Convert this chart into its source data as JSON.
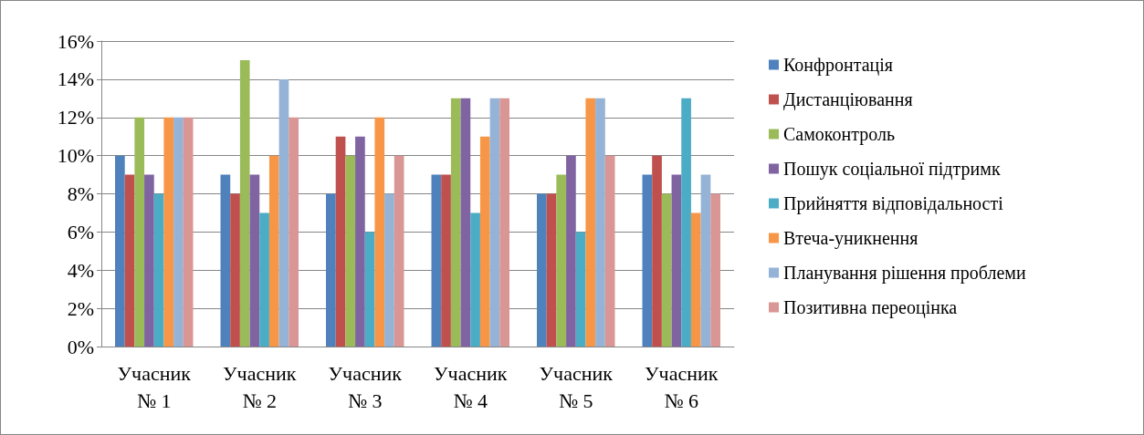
{
  "chart_data": {
    "type": "bar",
    "categories": [
      "Учасник № 1",
      "Учасник № 2",
      "Учасник № 3",
      "Учасник № 4",
      "Учасник № 5",
      "Учасник № 6"
    ],
    "series": [
      {
        "name": "Конфронтація",
        "color": "#4f81bd",
        "values": [
          10,
          9,
          8,
          9,
          8,
          9
        ]
      },
      {
        "name": "Дистанціювання",
        "color": "#c0504d",
        "values": [
          9,
          8,
          11,
          9,
          8,
          10
        ]
      },
      {
        "name": "Самоконтроль",
        "color": "#9bbb59",
        "values": [
          12,
          15,
          10,
          13,
          9,
          8
        ]
      },
      {
        "name": "Пошук соціальної підтримк",
        "color": "#8064a2",
        "values": [
          9,
          9,
          11,
          13,
          10,
          9
        ]
      },
      {
        "name": "Прийняття відповідальності",
        "color": "#4bacc6",
        "values": [
          8,
          7,
          6,
          7,
          6,
          13
        ]
      },
      {
        "name": "Втеча-уникнення",
        "color": "#f79646",
        "values": [
          12,
          10,
          12,
          11,
          13,
          7
        ]
      },
      {
        "name": "Планування рішення проблеми",
        "color": "#95b3d7",
        "values": [
          12,
          14,
          8,
          13,
          13,
          9
        ]
      },
      {
        "name": "Позитивна переоцінка",
        "color": "#d99694",
        "values": [
          12,
          12,
          10,
          13,
          10,
          8
        ]
      }
    ],
    "ylim": [
      0,
      16
    ],
    "yticks": [
      {
        "value": 0,
        "label": "0%"
      },
      {
        "value": 2,
        "label": "2%"
      },
      {
        "value": 4,
        "label": "4%"
      },
      {
        "value": 6,
        "label": "6%"
      },
      {
        "value": 8,
        "label": "8%"
      },
      {
        "value": 10,
        "label": "10%"
      },
      {
        "value": 12,
        "label": "12%"
      },
      {
        "value": 14,
        "label": "14%"
      },
      {
        "value": 16,
        "label": "16%"
      }
    ],
    "grid": "y",
    "legend": "right"
  }
}
